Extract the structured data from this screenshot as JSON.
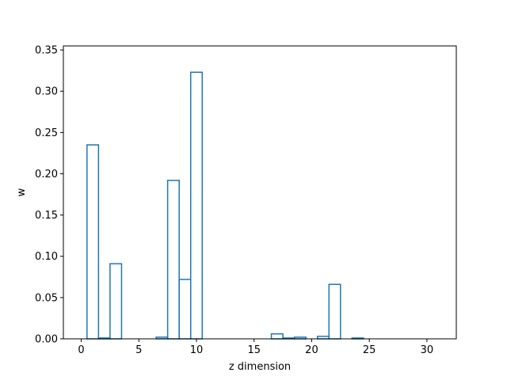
{
  "chart_data": {
    "type": "bar",
    "style": "step-histogram",
    "title": "",
    "xlabel": "z dimension",
    "ylabel": "w",
    "xlim": [
      -1.55,
      32.55
    ],
    "ylim": [
      0,
      0.3549
    ],
    "xticks": [
      0,
      5,
      10,
      15,
      20,
      25,
      30
    ],
    "yticks": [
      0.0,
      0.05,
      0.1,
      0.15,
      0.2,
      0.25,
      0.3,
      0.35
    ],
    "ytick_labels": [
      "0.00",
      "0.05",
      "0.10",
      "0.15",
      "0.20",
      "0.25",
      "0.30",
      "0.35"
    ],
    "color": "#1f77b4",
    "x": [
      0,
      1,
      2,
      3,
      4,
      5,
      6,
      7,
      8,
      9,
      10,
      11,
      12,
      13,
      14,
      15,
      16,
      17,
      18,
      19,
      20,
      21,
      22,
      23,
      24,
      25,
      26,
      27,
      28,
      29,
      30,
      31
    ],
    "values": [
      0,
      0.235,
      0.001,
      0.091,
      0,
      0,
      0,
      0.002,
      0.192,
      0.072,
      0.323,
      0,
      0,
      0,
      0,
      0,
      0,
      0.006,
      0.001,
      0.002,
      0,
      0.003,
      0.066,
      0,
      0.001,
      0,
      0,
      0,
      0,
      0,
      0,
      0
    ],
    "grid": false
  }
}
